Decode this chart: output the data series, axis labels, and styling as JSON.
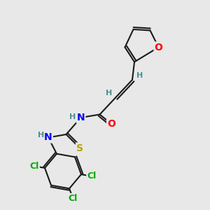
{
  "background_color": "#e8e8e8",
  "bond_color": "#1a1a1a",
  "colors": {
    "O": "#ff0000",
    "N": "#0000ff",
    "S": "#b8a000",
    "Cl": "#00aa00",
    "H": "#4a9090",
    "C": "#1a1a1a"
  },
  "font_size_atoms": 10,
  "font_size_h": 8,
  "font_size_cl": 9
}
